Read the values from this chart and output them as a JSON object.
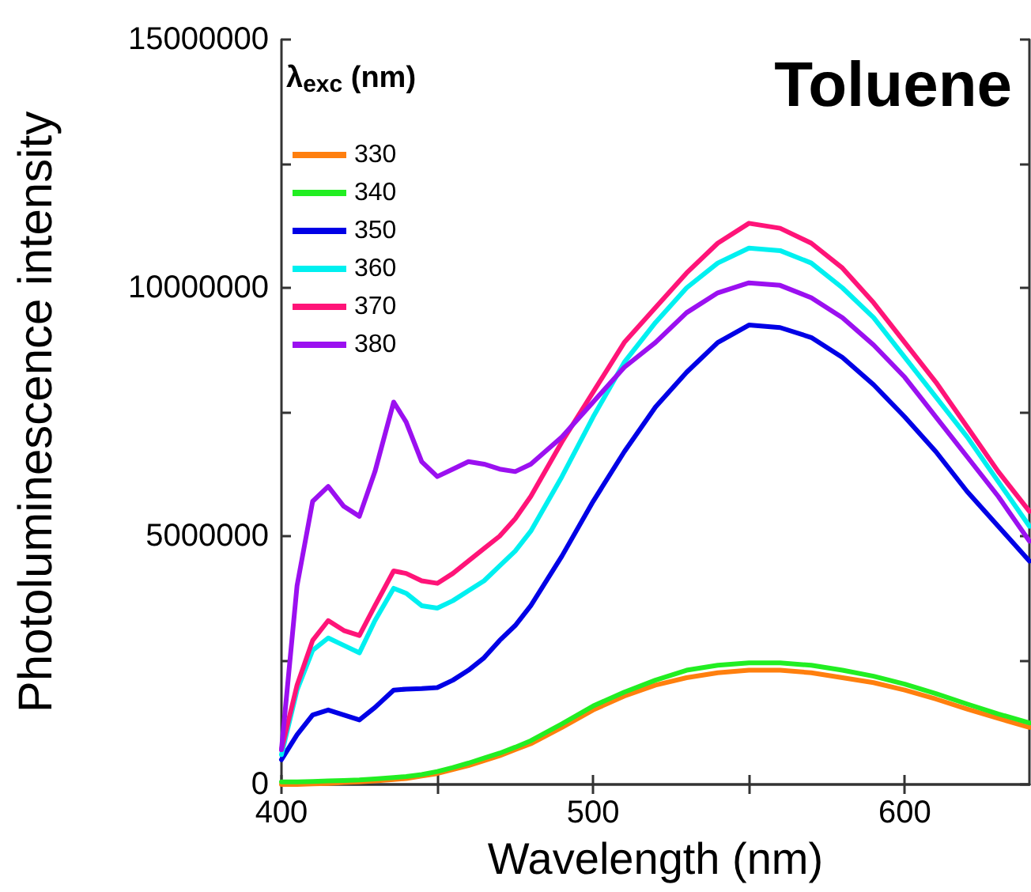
{
  "chart_data": {
    "type": "line",
    "title": "Toluene",
    "xlabel": "Wavelength (nm)",
    "ylabel": "Photoluminescence intensity",
    "legend_title": "λ$_{exc}$ (nm)",
    "legend": "top left",
    "grid": false,
    "marker": "none",
    "line_style": "solid",
    "x": [
      400,
      405,
      410,
      415,
      420,
      425,
      430,
      436,
      440,
      445,
      450,
      455,
      460,
      465,
      470,
      475,
      480,
      490,
      500,
      510,
      520,
      530,
      540,
      550,
      560,
      570,
      580,
      590,
      600,
      610,
      620,
      630,
      640
    ],
    "xlim": [
      400,
      640
    ],
    "xticks": [
      400,
      {
        "value": 450,
        "label": null
      },
      500,
      {
        "value": 550,
        "label": null
      },
      600
    ],
    "ylim": [
      0,
      15000000
    ],
    "yticks": [
      0,
      {
        "value": 2500000,
        "label": null
      },
      5000000,
      {
        "value": 7500000,
        "label": null
      },
      10000000,
      {
        "value": 12500000,
        "label": null
      },
      15000000
    ],
    "series": [
      {
        "name": "330",
        "color": "#ff7f0e",
        "values": [
          0,
          0,
          10000,
          20000,
          40000,
          50000,
          70000,
          100000,
          120000,
          170000,
          220000,
          300000,
          380000,
          480000,
          580000,
          700000,
          820000,
          1150000,
          1500000,
          1780000,
          2000000,
          2150000,
          2250000,
          2300000,
          2300000,
          2250000,
          2150000,
          2050000,
          1900000,
          1720000,
          1520000,
          1330000,
          1150000
        ]
      },
      {
        "name": "340",
        "color": "#22ee22",
        "values": [
          50000,
          50000,
          60000,
          70000,
          80000,
          90000,
          110000,
          140000,
          160000,
          200000,
          260000,
          340000,
          430000,
          530000,
          630000,
          750000,
          880000,
          1220000,
          1580000,
          1860000,
          2100000,
          2300000,
          2400000,
          2450000,
          2450000,
          2400000,
          2300000,
          2180000,
          2020000,
          1830000,
          1620000,
          1420000,
          1240000
        ]
      },
      {
        "name": "350",
        "color": "#0000e6",
        "values": [
          500000,
          1000000,
          1400000,
          1500000,
          1400000,
          1300000,
          1550000,
          1900000,
          1920000,
          1930000,
          1950000,
          2100000,
          2300000,
          2550000,
          2900000,
          3200000,
          3600000,
          4600000,
          5700000,
          6700000,
          7600000,
          8300000,
          8900000,
          9250000,
          9200000,
          9000000,
          8600000,
          8050000,
          7400000,
          6700000,
          5900000,
          5200000,
          4500000
        ]
      },
      {
        "name": "360",
        "color": "#00f0f0",
        "values": [
          600000,
          1900000,
          2700000,
          2950000,
          2800000,
          2650000,
          3300000,
          3950000,
          3850000,
          3600000,
          3550000,
          3700000,
          3900000,
          4100000,
          4400000,
          4700000,
          5100000,
          6200000,
          7400000,
          8500000,
          9300000,
          10000000,
          10500000,
          10800000,
          10750000,
          10500000,
          10000000,
          9400000,
          8600000,
          7800000,
          7000000,
          6100000,
          5200000
        ]
      },
      {
        "name": "370",
        "color": "#ff1478",
        "values": [
          700000,
          2000000,
          2900000,
          3300000,
          3100000,
          3000000,
          3600000,
          4300000,
          4250000,
          4100000,
          4050000,
          4250000,
          4500000,
          4750000,
          5000000,
          5350000,
          5800000,
          6900000,
          7900000,
          8900000,
          9600000,
          10300000,
          10900000,
          11300000,
          11200000,
          10900000,
          10400000,
          9700000,
          8900000,
          8100000,
          7200000,
          6300000,
          5500000
        ]
      },
      {
        "name": "380",
        "color": "#9b10f0",
        "values": [
          700000,
          4000000,
          5700000,
          6000000,
          5600000,
          5400000,
          6300000,
          7700000,
          7300000,
          6500000,
          6200000,
          6350000,
          6500000,
          6450000,
          6350000,
          6300000,
          6450000,
          7000000,
          7700000,
          8400000,
          8900000,
          9500000,
          9900000,
          10100000,
          10050000,
          9800000,
          9400000,
          8850000,
          8200000,
          7400000,
          6600000,
          5800000,
          4900000
        ]
      }
    ]
  }
}
